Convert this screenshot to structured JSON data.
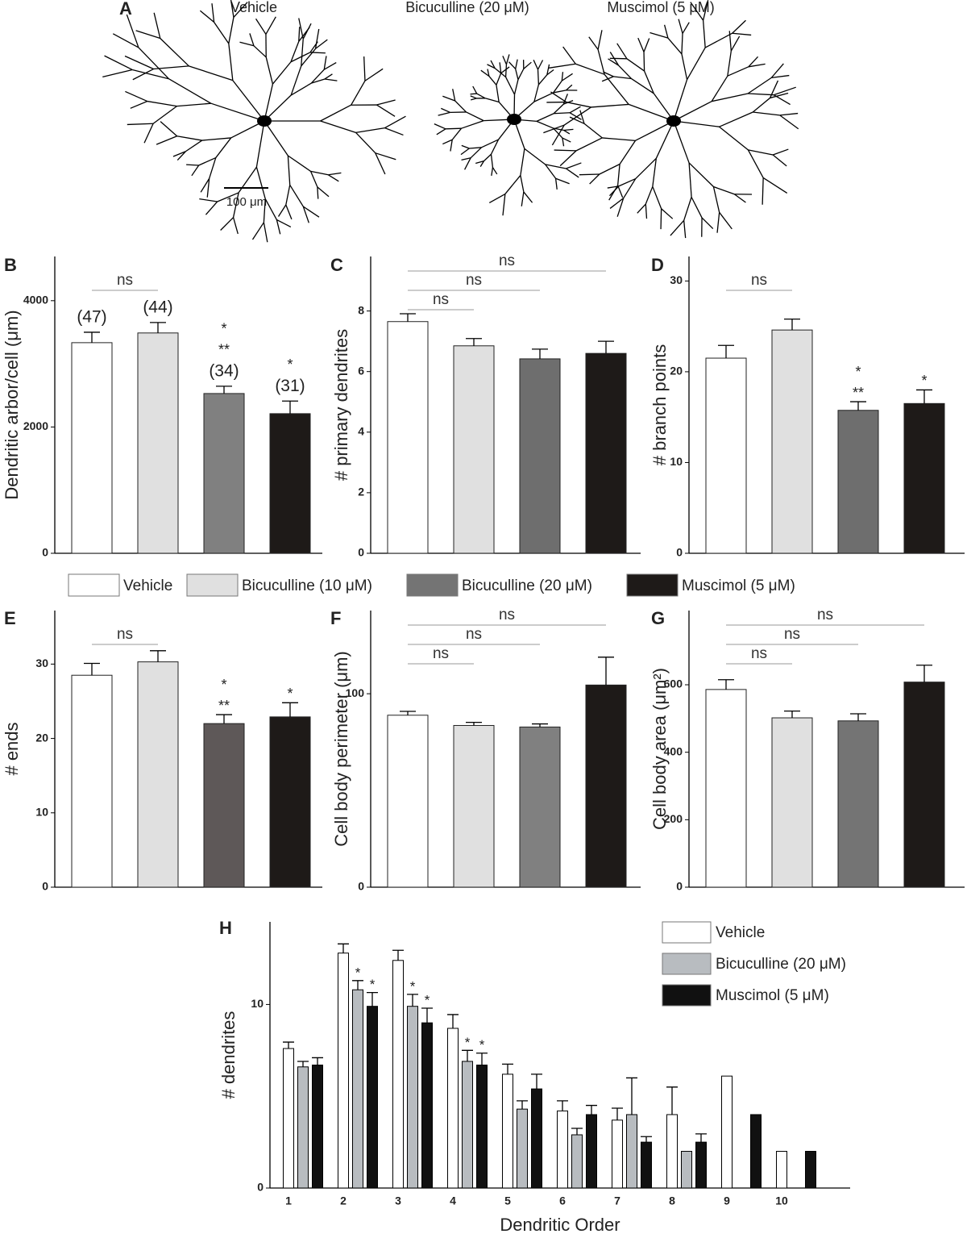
{
  "panel_a": {
    "label": "A",
    "titles": [
      "Vehicle",
      "Bicuculline (20 μM)",
      "Muscimol (5 μM)"
    ],
    "scale_bar": "100 μm"
  },
  "legend": [
    {
      "name": "Vehicle",
      "color": "#ffffff"
    },
    {
      "name": "Bicuculline (10 μM)",
      "color": "#e0e0e0"
    },
    {
      "name": "Bicuculline (20 μM)",
      "color": "#747474"
    },
    {
      "name": "Muscimol (5 μM)",
      "color": "#1e1a18"
    }
  ],
  "chart_data": [
    {
      "type": "bar",
      "label": "B",
      "ylabel": "Dendritic arbor/cell (μm)",
      "ylim": [
        0,
        4700
      ],
      "yticks": [
        0,
        2000,
        4000
      ],
      "values": [
        3335,
        3489,
        2530,
        2211
      ],
      "errors": [
        165,
        165,
        115,
        200
      ],
      "colors": [
        "#ffffff",
        "#e0e0e0",
        "#808080",
        "#1e1a18"
      ],
      "counts": [
        "(47)",
        "(44)",
        "(34)",
        "(31)"
      ],
      "stars": [
        [],
        [],
        [
          "*",
          "**"
        ],
        [
          "*"
        ]
      ],
      "comparisons": [
        {
          "label": "ns",
          "bars": [
            0,
            1
          ]
        }
      ]
    },
    {
      "type": "bar",
      "label": "C",
      "ylabel": "# primary dendrites",
      "ylim": [
        0,
        9.8
      ],
      "yticks": [
        0,
        2,
        4,
        6,
        8
      ],
      "values": [
        7.65,
        6.85,
        6.42,
        6.6
      ],
      "errors": [
        0.26,
        0.24,
        0.32,
        0.4
      ],
      "colors": [
        "#ffffff",
        "#e0e0e0",
        "#6e6e6e",
        "#1e1a18"
      ],
      "comparisons": [
        {
          "label": "ns",
          "bars": [
            0,
            1
          ]
        },
        {
          "label": "ns",
          "bars": [
            0,
            2
          ]
        },
        {
          "label": "ns",
          "bars": [
            0,
            3
          ]
        }
      ]
    },
    {
      "type": "bar",
      "label": "D",
      "ylabel": "# branch points",
      "ylim": [
        0,
        32.7
      ],
      "yticks": [
        0,
        10,
        20,
        30
      ],
      "values": [
        21.5,
        24.6,
        15.75,
        16.5
      ],
      "errors": [
        1.4,
        1.2,
        0.95,
        1.5
      ],
      "colors": [
        "#ffffff",
        "#e0e0e0",
        "#6e6e6e",
        "#1e1a18"
      ],
      "stars": [
        [],
        [],
        [
          "*",
          "**"
        ],
        [
          "*"
        ]
      ],
      "comparisons": [
        {
          "label": "ns",
          "bars": [
            0,
            1
          ]
        }
      ]
    },
    {
      "type": "bar",
      "label": "E",
      "ylabel": "# ends",
      "ylim": [
        0,
        37.2
      ],
      "yticks": [
        0,
        10,
        20,
        30
      ],
      "values": [
        28.5,
        30.3,
        22.0,
        22.9
      ],
      "errors": [
        1.6,
        1.5,
        1.2,
        1.9
      ],
      "colors": [
        "#ffffff",
        "#e0e0e0",
        "#5e5858",
        "#1e1a18"
      ],
      "stars": [
        [],
        [],
        [
          "*",
          "**"
        ],
        [
          "*"
        ]
      ],
      "comparisons": [
        {
          "label": "ns",
          "bars": [
            0,
            1
          ]
        }
      ]
    },
    {
      "type": "bar",
      "label": "F",
      "ylabel": "Cell body perimeter (μm)",
      "ylim": [
        0,
        143
      ],
      "yticks": [
        0,
        100
      ],
      "values": [
        88.9,
        83.6,
        82.8,
        104.5
      ],
      "errors": [
        2,
        1.6,
        1.6,
        14.4
      ],
      "colors": [
        "#ffffff",
        "#e0e0e0",
        "#808080",
        "#1e1a18"
      ],
      "comparisons": [
        {
          "label": "ns",
          "bars": [
            0,
            1
          ]
        },
        {
          "label": "ns",
          "bars": [
            0,
            2
          ]
        },
        {
          "label": "ns",
          "bars": [
            0,
            3
          ]
        }
      ]
    },
    {
      "type": "bar",
      "label": "G",
      "ylabel": "Cell body area (μm²)",
      "ylim": [
        0,
        820
      ],
      "yticks": [
        0,
        200,
        400,
        600
      ],
      "values": [
        586,
        502,
        493,
        608
      ],
      "errors": [
        29,
        20,
        21,
        50
      ],
      "colors": [
        "#ffffff",
        "#e0e0e0",
        "#747474",
        "#1e1a18"
      ],
      "comparisons": [
        {
          "label": "ns",
          "bars": [
            0,
            1
          ]
        },
        {
          "label": "ns",
          "bars": [
            0,
            2
          ]
        },
        {
          "label": "ns",
          "bars": [
            0,
            3
          ]
        }
      ]
    },
    {
      "type": "bar",
      "label": "H",
      "xlabel": "Dendritic Order",
      "ylabel": "# dendrites",
      "ylim": [
        0,
        14.5
      ],
      "yticks": [
        0,
        10
      ],
      "categories": [
        "1",
        "2",
        "3",
        "4",
        "5",
        "6",
        "7",
        "8",
        "9",
        "10"
      ],
      "legend": "upper right",
      "series": [
        {
          "name": "Vehicle",
          "color": "#ffffff",
          "values": [
            7.6,
            12.8,
            12.4,
            8.7,
            6.2,
            4.2,
            3.7,
            4.0,
            6.1,
            2.0
          ],
          "errors": [
            0.35,
            0.5,
            0.55,
            0.75,
            0.55,
            0.55,
            0.65,
            1.5,
            null,
            null
          ]
        },
        {
          "name": "Bicuculline (20 μM)",
          "color": "#b8bcc0",
          "values": [
            6.6,
            10.8,
            9.9,
            6.9,
            4.3,
            2.9,
            4.0,
            2.0,
            null,
            null
          ],
          "errors": [
            0.3,
            0.5,
            0.65,
            0.6,
            0.45,
            0.35,
            2.0,
            null,
            null,
            null
          ],
          "stars": [
            null,
            "*",
            "*",
            "*",
            null,
            null,
            null,
            null,
            null,
            null
          ]
        },
        {
          "name": "Muscimol (5 μM)",
          "color": "#111111",
          "values": [
            6.7,
            9.9,
            9.0,
            6.7,
            5.4,
            4.0,
            2.5,
            2.5,
            4.0,
            2.0
          ],
          "errors": [
            0.4,
            0.75,
            0.8,
            0.65,
            0.8,
            0.5,
            0.3,
            0.45,
            null,
            null
          ],
          "stars": [
            null,
            "*",
            "*",
            "*",
            null,
            null,
            null,
            null,
            null,
            null
          ]
        }
      ]
    }
  ]
}
